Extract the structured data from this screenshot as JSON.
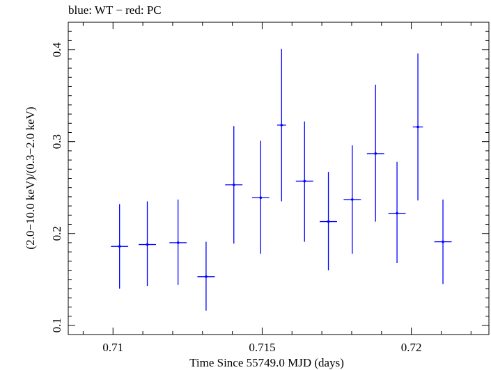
{
  "title": "blue: WT − red: PC",
  "colors": {
    "wt": "#0000ff",
    "axis": "#000000"
  },
  "chart_data": {
    "type": "scatter",
    "title": "blue: WT − red: PC",
    "xlabel": "Time Since 55749.0 MJD (days)",
    "ylabel": "(2.0−10.0 keV)/(0.3−2.0 keV)",
    "xlim": [
      0.7085,
      0.7226
    ],
    "ylim": [
      0.09,
      0.43
    ],
    "x_ticks": [
      0.71,
      0.715,
      0.72
    ],
    "x_tick_labels": [
      "0.71",
      "0.715",
      "0.72"
    ],
    "y_ticks": [
      0.1,
      0.2,
      0.3,
      0.4
    ],
    "y_tick_labels": [
      "0.1",
      "0.2",
      "0.3",
      "0.4"
    ],
    "series": [
      {
        "color": "#0000ff",
        "points": [
          {
            "x": 0.71022,
            "xerr": 0.00029,
            "y": 0.186,
            "ylo": 0.14,
            "yhi": 0.232
          },
          {
            "x": 0.71115,
            "xerr": 0.00029,
            "y": 0.188,
            "ylo": 0.143,
            "yhi": 0.235
          },
          {
            "x": 0.71218,
            "xerr": 0.00029,
            "y": 0.19,
            "ylo": 0.144,
            "yhi": 0.237
          },
          {
            "x": 0.71312,
            "xerr": 0.00029,
            "y": 0.153,
            "ylo": 0.116,
            "yhi": 0.191
          },
          {
            "x": 0.71405,
            "xerr": 0.00029,
            "y": 0.253,
            "ylo": 0.189,
            "yhi": 0.317
          },
          {
            "x": 0.71495,
            "xerr": 0.00029,
            "y": 0.239,
            "ylo": 0.178,
            "yhi": 0.301
          },
          {
            "x": 0.71565,
            "xerr": 0.00015,
            "y": 0.318,
            "ylo": 0.235,
            "yhi": 0.401
          },
          {
            "x": 0.71642,
            "xerr": 0.00029,
            "y": 0.257,
            "ylo": 0.191,
            "yhi": 0.322
          },
          {
            "x": 0.71722,
            "xerr": 0.00029,
            "y": 0.213,
            "ylo": 0.16,
            "yhi": 0.267
          },
          {
            "x": 0.71802,
            "xerr": 0.00029,
            "y": 0.237,
            "ylo": 0.178,
            "yhi": 0.296
          },
          {
            "x": 0.7188,
            "xerr": 0.00029,
            "y": 0.287,
            "ylo": 0.213,
            "yhi": 0.362
          },
          {
            "x": 0.71952,
            "xerr": 0.00029,
            "y": 0.222,
            "ylo": 0.168,
            "yhi": 0.278
          },
          {
            "x": 0.72022,
            "xerr": 0.00017,
            "y": 0.316,
            "ylo": 0.236,
            "yhi": 0.396
          },
          {
            "x": 0.72106,
            "xerr": 0.00029,
            "y": 0.191,
            "ylo": 0.145,
            "yhi": 0.237
          }
        ]
      }
    ]
  }
}
